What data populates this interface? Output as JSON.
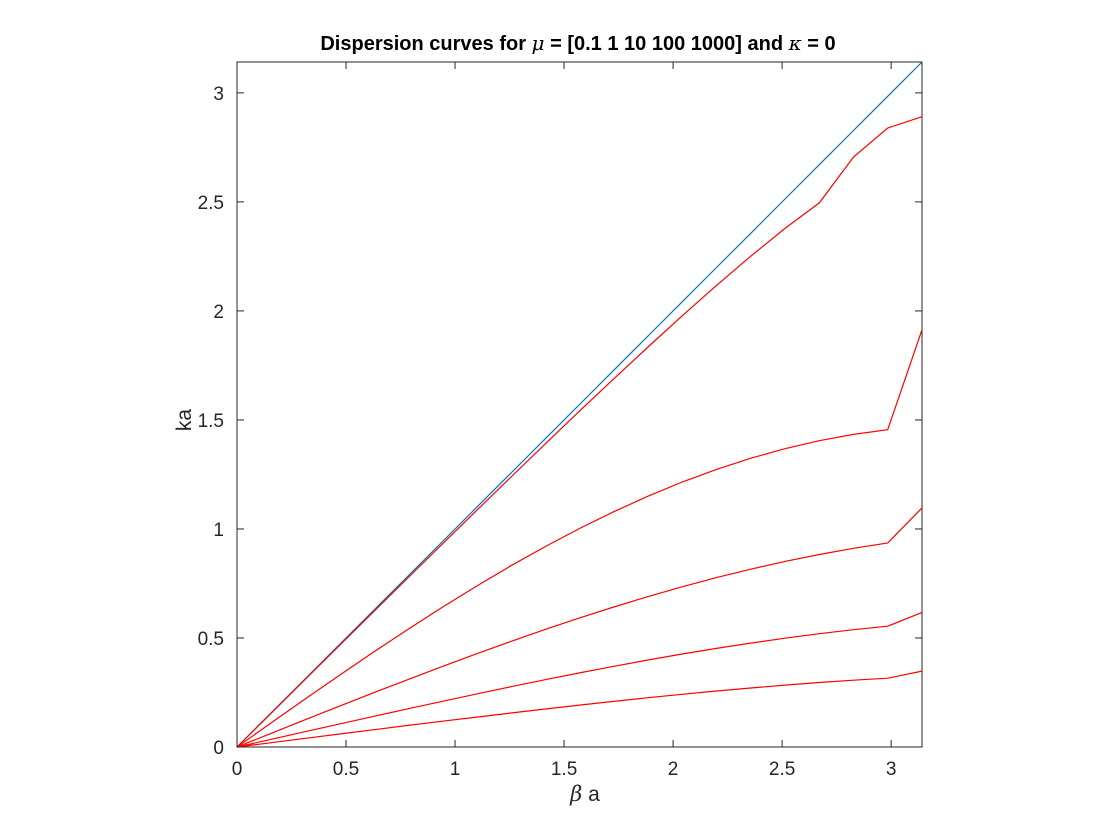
{
  "chart_data": {
    "type": "line",
    "title": {
      "prefix": "Dispersion curves for ",
      "sym1": "μ",
      "middle": " = [0.1 1 10 100 1000] and ",
      "sym2": "κ",
      "suffix": " = 0"
    },
    "xlabel": {
      "sym": "β",
      "text": " a"
    },
    "ylabel": "ka",
    "xlim": [
      0,
      3.1416
    ],
    "ylim": [
      0,
      3.1416
    ],
    "xticks": [
      0,
      0.5,
      1,
      1.5,
      2,
      2.5,
      3
    ],
    "xtick_labels": [
      "0",
      "0.5",
      "1",
      "1.5",
      "2",
      "2.5",
      "3"
    ],
    "yticks": [
      0,
      0.5,
      1,
      1.5,
      2,
      2.5,
      3
    ],
    "ytick_labels": [
      "0",
      "0.5",
      "1",
      "1.5",
      "2",
      "2.5",
      "3"
    ],
    "grid": false,
    "x": [
      0,
      0.1571,
      0.3142,
      0.4712,
      0.6283,
      0.7854,
      0.9425,
      1.0996,
      1.2566,
      1.4137,
      1.5708,
      1.7279,
      1.885,
      2.042,
      2.1991,
      2.3562,
      2.5133,
      2.6704,
      2.8274,
      2.9845,
      3.1416
    ],
    "series": [
      {
        "color": "#0072BD",
        "values": [
          0,
          0.1571,
          0.3142,
          0.4712,
          0.6283,
          0.7854,
          0.9425,
          1.0996,
          1.2566,
          1.4137,
          1.5708,
          1.7279,
          1.885,
          2.042,
          2.1991,
          2.3562,
          2.5133,
          2.6704,
          2.8274,
          2.9845,
          3.1416
        ]
      },
      {
        "color": "#FF0000",
        "values": [
          0,
          0.1557,
          0.3114,
          0.4668,
          0.6222,
          0.7772,
          0.9318,
          1.0857,
          1.2385,
          1.3902,
          1.5404,
          1.6887,
          1.8347,
          1.9777,
          2.1169,
          2.2511,
          2.3784,
          2.4955,
          2.7058,
          2.8388,
          2.8908
        ]
      },
      {
        "color": "#FF0000",
        "values": [
          0,
          0.1108,
          0.2209,
          0.3297,
          0.4364,
          0.5405,
          0.6414,
          0.7385,
          0.8313,
          0.9193,
          1.0021,
          1.0793,
          1.1504,
          1.2152,
          1.2733,
          1.3244,
          1.3683,
          1.4048,
          1.4338,
          1.4553,
          1.9132
        ]
      },
      {
        "color": "#FF0000",
        "values": [
          0,
          0.0629,
          0.1255,
          0.1878,
          0.2494,
          0.3101,
          0.3697,
          0.4279,
          0.4845,
          0.5392,
          0.5919,
          0.6422,
          0.6899,
          0.7349,
          0.7768,
          0.8156,
          0.851,
          0.8829,
          0.9111,
          0.9354,
          1.0966
        ]
      },
      {
        "color": "#FF0000",
        "values": [
          0,
          0.0354,
          0.0707,
          0.106,
          0.1409,
          0.1756,
          0.2098,
          0.2434,
          0.2764,
          0.3086,
          0.3398,
          0.3699,
          0.3988,
          0.4264,
          0.4524,
          0.4767,
          0.4992,
          0.5197,
          0.5381,
          0.5541,
          0.6174
        ]
      },
      {
        "color": "#FF0000",
        "values": [
          0,
          0.0199,
          0.0398,
          0.0597,
          0.0794,
          0.0989,
          0.1182,
          0.1373,
          0.156,
          0.1743,
          0.1921,
          0.2093,
          0.2259,
          0.2417,
          0.2567,
          0.2708,
          0.2838,
          0.2956,
          0.3062,
          0.3154,
          0.348
        ]
      }
    ]
  }
}
